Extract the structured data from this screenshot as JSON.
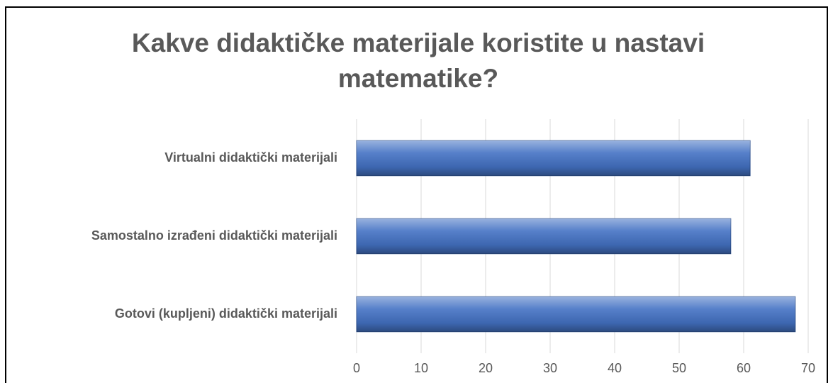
{
  "chart_data": {
    "type": "bar",
    "orientation": "horizontal",
    "title": "Kakve didaktičke materijale koristite u nastavi matematike?",
    "categories": [
      "Gotovi (kupljeni) didaktički materijali",
      "Samostalno izrađeni didaktički materijali",
      "Virtualni didaktički materijali"
    ],
    "values": [
      68,
      58,
      61
    ],
    "color": "#4472c4",
    "xlim": [
      0,
      70
    ],
    "xticks": [
      0,
      10,
      20,
      30,
      40,
      50,
      60,
      70
    ],
    "grid": true
  }
}
